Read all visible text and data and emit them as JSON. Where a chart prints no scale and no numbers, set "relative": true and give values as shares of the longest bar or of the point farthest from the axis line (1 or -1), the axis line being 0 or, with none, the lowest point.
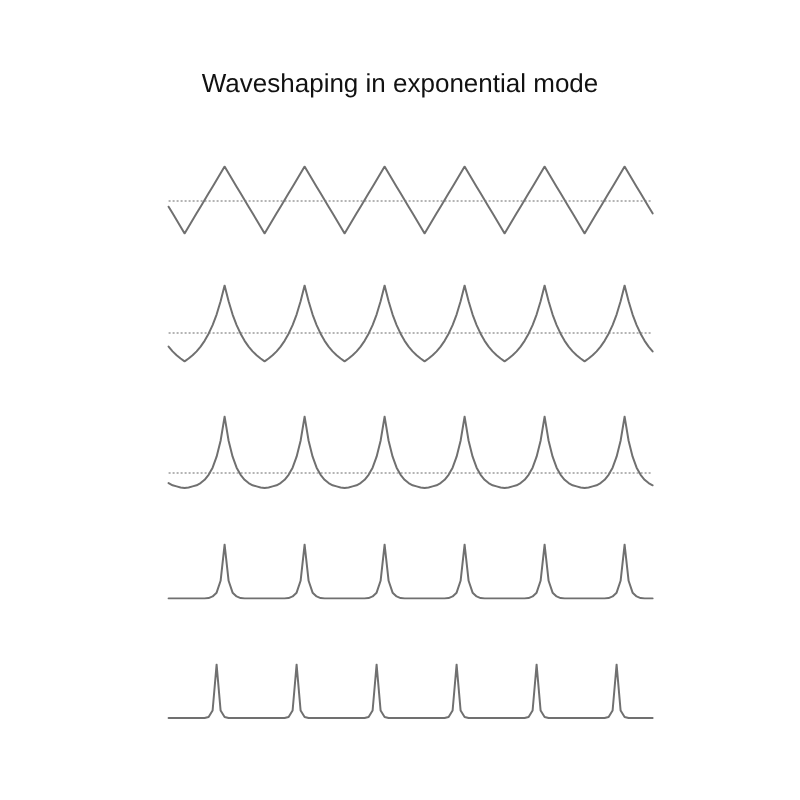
{
  "chart_data": [
    {
      "type": "line",
      "title": "Waveshaping in exponential mode",
      "relative": true,
      "marker": "none",
      "categories": [
        null,
        null,
        null,
        null,
        null,
        null,
        null,
        null,
        null,
        null,
        null,
        null,
        null,
        null,
        null,
        null,
        null,
        null,
        null,
        null,
        null,
        null,
        null,
        null,
        null,
        null,
        null,
        null,
        null,
        null,
        null,
        null,
        null,
        null,
        null,
        null,
        null,
        null,
        null,
        null,
        null,
        null,
        null,
        null,
        null,
        null,
        null,
        null,
        null,
        null,
        null,
        null,
        null,
        null,
        null,
        null,
        null,
        null,
        null,
        null,
        null,
        null,
        null,
        null,
        null,
        null,
        null,
        null,
        null,
        null,
        null,
        null,
        null,
        null,
        null,
        null,
        null,
        null,
        null,
        null,
        null,
        null,
        null,
        null,
        null,
        null,
        null,
        null,
        null,
        null,
        null,
        null,
        null,
        null,
        null,
        null,
        null,
        null,
        null,
        null,
        null,
        null,
        null,
        null,
        null,
        null,
        null,
        null,
        null,
        null,
        null,
        null,
        null,
        null,
        null,
        null,
        null,
        null,
        null,
        null,
        null,
        null
      ],
      "series": [
        {
          "color": "#707070",
          "values": [
            -0.2,
            -0.4,
            -0.6,
            -0.8,
            -1,
            -0.8,
            -0.6,
            -0.4,
            -0.2,
            0,
            0.2,
            0.4,
            0.6,
            0.8,
            1,
            0.8,
            0.6,
            0.4,
            0.2,
            0,
            -0.2,
            -0.4,
            -0.6,
            -0.8,
            -1,
            -0.8,
            -0.6,
            -0.4,
            -0.2,
            0,
            0.2,
            0.4,
            0.6,
            0.8,
            1,
            0.8,
            0.6,
            0.4,
            0.2,
            0,
            -0.2,
            -0.4,
            -0.6,
            -0.8,
            -1,
            -0.8,
            -0.6,
            -0.4,
            -0.2,
            0,
            0.2,
            0.4,
            0.6,
            0.8,
            1,
            0.8,
            0.6,
            0.4,
            0.2,
            0,
            -0.2,
            -0.4,
            -0.6,
            -0.8,
            -1,
            -0.8,
            -0.6,
            -0.4,
            -0.2,
            0,
            0.2,
            0.4,
            0.6,
            0.8,
            1,
            0.8,
            0.6,
            0.4,
            0.2,
            0,
            -0.2,
            -0.4,
            -0.6,
            -0.8,
            -1,
            -0.8,
            -0.6,
            -0.4,
            -0.2,
            0,
            0.2,
            0.4,
            0.6,
            0.8,
            1,
            0.8,
            0.6,
            0.4,
            0.2,
            0,
            -0.2,
            -0.4,
            -0.6,
            -0.8,
            -1,
            -0.8,
            -0.6,
            -0.4,
            -0.2,
            0,
            0.2,
            0.4,
            0.6,
            0.8,
            1,
            0.8,
            0.6,
            0.4,
            0.2,
            0,
            -0.2,
            -0.4
          ]
        }
      ],
      "ref_lines": [
        {
          "axis": "y",
          "value": 0,
          "line_style": "dotted",
          "color": "#b4b4b4"
        }
      ]
    },
    {
      "type": "line",
      "relative": true,
      "marker": "none",
      "categories": [
        null,
        null,
        null,
        null,
        null,
        null,
        null,
        null,
        null,
        null,
        null,
        null,
        null,
        null,
        null,
        null,
        null,
        null,
        null,
        null,
        null,
        null,
        null,
        null,
        null,
        null,
        null,
        null,
        null,
        null,
        null,
        null,
        null,
        null,
        null,
        null,
        null,
        null,
        null,
        null,
        null,
        null,
        null,
        null,
        null,
        null,
        null,
        null,
        null,
        null,
        null,
        null,
        null,
        null,
        null,
        null,
        null,
        null,
        null,
        null,
        null,
        null,
        null,
        null,
        null,
        null,
        null,
        null,
        null,
        null,
        null,
        null,
        null,
        null,
        null,
        null,
        null,
        null,
        null,
        null,
        null,
        null,
        null,
        null,
        null,
        null,
        null,
        null,
        null,
        null,
        null,
        null,
        null,
        null,
        null,
        null,
        null,
        null,
        null,
        null,
        null,
        null,
        null,
        null,
        null,
        null,
        null,
        null,
        null,
        null,
        null,
        null,
        null,
        null,
        null,
        null,
        null,
        null,
        null,
        null,
        null,
        null
      ],
      "series": [
        {
          "color": "#707070",
          "values": [
            -0.28,
            -0.38,
            -0.46,
            -0.53,
            -0.59,
            -0.53,
            -0.46,
            -0.38,
            -0.28,
            -0.16,
            -0.01,
            0.17,
            0.39,
            0.67,
            1,
            0.67,
            0.39,
            0.17,
            -0.01,
            -0.16,
            -0.28,
            -0.38,
            -0.46,
            -0.53,
            -0.59,
            -0.53,
            -0.46,
            -0.38,
            -0.28,
            -0.16,
            -0.01,
            0.17,
            0.39,
            0.67,
            1,
            0.67,
            0.39,
            0.17,
            -0.01,
            -0.16,
            -0.28,
            -0.38,
            -0.46,
            -0.53,
            -0.59,
            -0.53,
            -0.46,
            -0.38,
            -0.28,
            -0.16,
            -0.01,
            0.17,
            0.39,
            0.67,
            1,
            0.67,
            0.39,
            0.17,
            -0.01,
            -0.16,
            -0.28,
            -0.38,
            -0.46,
            -0.53,
            -0.59,
            -0.53,
            -0.46,
            -0.38,
            -0.28,
            -0.16,
            -0.01,
            0.17,
            0.39,
            0.67,
            1,
            0.67,
            0.39,
            0.17,
            -0.01,
            -0.16,
            -0.28,
            -0.38,
            -0.46,
            -0.53,
            -0.59,
            -0.53,
            -0.46,
            -0.38,
            -0.28,
            -0.16,
            -0.01,
            0.17,
            0.39,
            0.67,
            1,
            0.67,
            0.39,
            0.17,
            -0.01,
            -0.16,
            -0.28,
            -0.38,
            -0.46,
            -0.53,
            -0.59,
            -0.53,
            -0.46,
            -0.38,
            -0.28,
            -0.16,
            -0.01,
            0.17,
            0.39,
            0.67,
            1,
            0.67,
            0.39,
            0.17,
            -0.01,
            -0.16,
            -0.28,
            -0.38
          ]
        }
      ],
      "ref_lines": [
        {
          "axis": "y",
          "value": 0,
          "line_style": "dotted",
          "color": "#b4b4b4"
        }
      ]
    },
    {
      "type": "line",
      "relative": true,
      "marker": "none",
      "categories": [
        null,
        null,
        null,
        null,
        null,
        null,
        null,
        null,
        null,
        null,
        null,
        null,
        null,
        null,
        null,
        null,
        null,
        null,
        null,
        null,
        null,
        null,
        null,
        null,
        null,
        null,
        null,
        null,
        null,
        null,
        null,
        null,
        null,
        null,
        null,
        null,
        null,
        null,
        null,
        null,
        null,
        null,
        null,
        null,
        null,
        null,
        null,
        null,
        null,
        null,
        null,
        null,
        null,
        null,
        null,
        null,
        null,
        null,
        null,
        null,
        null,
        null,
        null,
        null,
        null,
        null,
        null,
        null,
        null,
        null,
        null,
        null,
        null,
        null,
        null,
        null,
        null,
        null,
        null,
        null,
        null,
        null,
        null,
        null,
        null,
        null,
        null,
        null,
        null,
        null,
        null,
        null,
        null,
        null,
        null,
        null,
        null,
        null,
        null,
        null,
        null,
        null,
        null,
        null,
        null,
        null,
        null,
        null,
        null,
        null,
        null,
        null,
        null,
        null,
        null,
        null,
        null,
        null,
        null,
        null,
        null,
        null
      ],
      "series": [
        {
          "color": "#707070",
          "values": [
            -0.21,
            -0.25,
            -0.27,
            -0.29,
            -0.3,
            -0.29,
            -0.27,
            -0.25,
            -0.21,
            -0.15,
            -0.06,
            0.07,
            0.27,
            0.56,
            1,
            0.56,
            0.27,
            0.07,
            -0.06,
            -0.15,
            -0.21,
            -0.25,
            -0.27,
            -0.29,
            -0.3,
            -0.29,
            -0.27,
            -0.25,
            -0.21,
            -0.15,
            -0.06,
            0.07,
            0.27,
            0.56,
            1,
            0.56,
            0.27,
            0.07,
            -0.06,
            -0.15,
            -0.21,
            -0.25,
            -0.27,
            -0.29,
            -0.3,
            -0.29,
            -0.27,
            -0.25,
            -0.21,
            -0.15,
            -0.06,
            0.07,
            0.27,
            0.56,
            1,
            0.56,
            0.27,
            0.07,
            -0.06,
            -0.15,
            -0.21,
            -0.25,
            -0.27,
            -0.29,
            -0.3,
            -0.29,
            -0.27,
            -0.25,
            -0.21,
            -0.15,
            -0.06,
            0.07,
            0.27,
            0.56,
            1,
            0.56,
            0.27,
            0.07,
            -0.06,
            -0.15,
            -0.21,
            -0.25,
            -0.27,
            -0.29,
            -0.3,
            -0.29,
            -0.27,
            -0.25,
            -0.21,
            -0.15,
            -0.06,
            0.07,
            0.27,
            0.56,
            1,
            0.56,
            0.27,
            0.07,
            -0.06,
            -0.15,
            -0.21,
            -0.25,
            -0.27,
            -0.29,
            -0.3,
            -0.29,
            -0.27,
            -0.25,
            -0.21,
            -0.15,
            -0.06,
            0.07,
            0.27,
            0.56,
            1,
            0.56,
            0.27,
            0.07,
            -0.06,
            -0.15,
            -0.21,
            -0.25
          ]
        }
      ],
      "ref_lines": [
        {
          "axis": "y",
          "value": 0,
          "line_style": "dotted",
          "color": "#b4b4b4"
        }
      ]
    },
    {
      "type": "line",
      "relative": true,
      "marker": "none",
      "categories": [
        null,
        null,
        null,
        null,
        null,
        null,
        null,
        null,
        null,
        null,
        null,
        null,
        null,
        null,
        null,
        null,
        null,
        null,
        null,
        null,
        null,
        null,
        null,
        null,
        null,
        null,
        null,
        null,
        null,
        null,
        null,
        null,
        null,
        null,
        null,
        null,
        null,
        null,
        null,
        null,
        null,
        null,
        null,
        null,
        null,
        null,
        null,
        null,
        null,
        null,
        null,
        null,
        null,
        null,
        null,
        null,
        null,
        null,
        null,
        null,
        null,
        null,
        null,
        null,
        null,
        null,
        null,
        null,
        null,
        null,
        null,
        null,
        null,
        null,
        null,
        null,
        null,
        null,
        null,
        null,
        null,
        null,
        null,
        null,
        null,
        null,
        null,
        null,
        null,
        null,
        null,
        null,
        null,
        null,
        null,
        null,
        null,
        null,
        null,
        null,
        null,
        null,
        null,
        null,
        null,
        null,
        null,
        null,
        null,
        null,
        null,
        null,
        null,
        null,
        null,
        null,
        null,
        null,
        null,
        null,
        null,
        null
      ],
      "series": [
        {
          "color": "#707070",
          "values": [
            0,
            0,
            0,
            0,
            0,
            0,
            0,
            0,
            0,
            0,
            0.01,
            0.04,
            0.11,
            0.33,
            1,
            0.33,
            0.11,
            0.04,
            0.01,
            0,
            0,
            0,
            0,
            0,
            0,
            0,
            0,
            0,
            0,
            0,
            0.01,
            0.04,
            0.11,
            0.33,
            1,
            0.33,
            0.11,
            0.04,
            0.01,
            0,
            0,
            0,
            0,
            0,
            0,
            0,
            0,
            0,
            0,
            0,
            0.01,
            0.04,
            0.11,
            0.33,
            1,
            0.33,
            0.11,
            0.04,
            0.01,
            0,
            0,
            0,
            0,
            0,
            0,
            0,
            0,
            0,
            0,
            0,
            0.01,
            0.04,
            0.11,
            0.33,
            1,
            0.33,
            0.11,
            0.04,
            0.01,
            0,
            0,
            0,
            0,
            0,
            0,
            0,
            0,
            0,
            0,
            0,
            0.01,
            0.04,
            0.11,
            0.33,
            1,
            0.33,
            0.11,
            0.04,
            0.01,
            0,
            0,
            0,
            0,
            0,
            0,
            0,
            0,
            0,
            0,
            0,
            0.01,
            0.04,
            0.11,
            0.33,
            1,
            0.33,
            0.11,
            0.04,
            0.01,
            0,
            0,
            0
          ]
        }
      ]
    },
    {
      "type": "line",
      "relative": true,
      "marker": "none",
      "categories": [
        null,
        null,
        null,
        null,
        null,
        null,
        null,
        null,
        null,
        null,
        null,
        null,
        null,
        null,
        null,
        null,
        null,
        null,
        null,
        null,
        null,
        null,
        null,
        null,
        null,
        null,
        null,
        null,
        null,
        null,
        null,
        null,
        null,
        null,
        null,
        null,
        null,
        null,
        null,
        null,
        null,
        null,
        null,
        null,
        null,
        null,
        null,
        null,
        null,
        null,
        null,
        null,
        null,
        null,
        null,
        null,
        null,
        null,
        null,
        null,
        null,
        null,
        null,
        null,
        null,
        null,
        null,
        null,
        null,
        null,
        null,
        null,
        null,
        null,
        null,
        null,
        null,
        null,
        null,
        null,
        null,
        null,
        null,
        null,
        null,
        null,
        null,
        null,
        null,
        null,
        null,
        null,
        null,
        null,
        null,
        null,
        null,
        null,
        null,
        null,
        null,
        null,
        null,
        null,
        null,
        null,
        null,
        null,
        null,
        null,
        null,
        null,
        null,
        null,
        null,
        null,
        null,
        null,
        null,
        null,
        null,
        null
      ],
      "series": [
        {
          "color": "#707070",
          "values": [
            0,
            0,
            0,
            0,
            0,
            0,
            0,
            0,
            0,
            0,
            0.02,
            0.14,
            1,
            0.14,
            0.02,
            0,
            0,
            0,
            0,
            0,
            0,
            0,
            0,
            0,
            0,
            0,
            0,
            0,
            0,
            0,
            0.02,
            0.14,
            1,
            0.14,
            0.02,
            0,
            0,
            0,
            0,
            0,
            0,
            0,
            0,
            0,
            0,
            0,
            0,
            0,
            0,
            0,
            0.02,
            0.14,
            1,
            0.14,
            0.02,
            0,
            0,
            0,
            0,
            0,
            0,
            0,
            0,
            0,
            0,
            0,
            0,
            0,
            0,
            0,
            0.02,
            0.14,
            1,
            0.14,
            0.02,
            0,
            0,
            0,
            0,
            0,
            0,
            0,
            0,
            0,
            0,
            0,
            0,
            0,
            0,
            0,
            0.02,
            0.14,
            1,
            0.14,
            0.02,
            0,
            0,
            0,
            0,
            0,
            0,
            0,
            0,
            0,
            0,
            0,
            0,
            0,
            0,
            0,
            0.02,
            0.14,
            1,
            0.14,
            0.02,
            0,
            0,
            0,
            0,
            0,
            0,
            0
          ]
        }
      ]
    }
  ]
}
